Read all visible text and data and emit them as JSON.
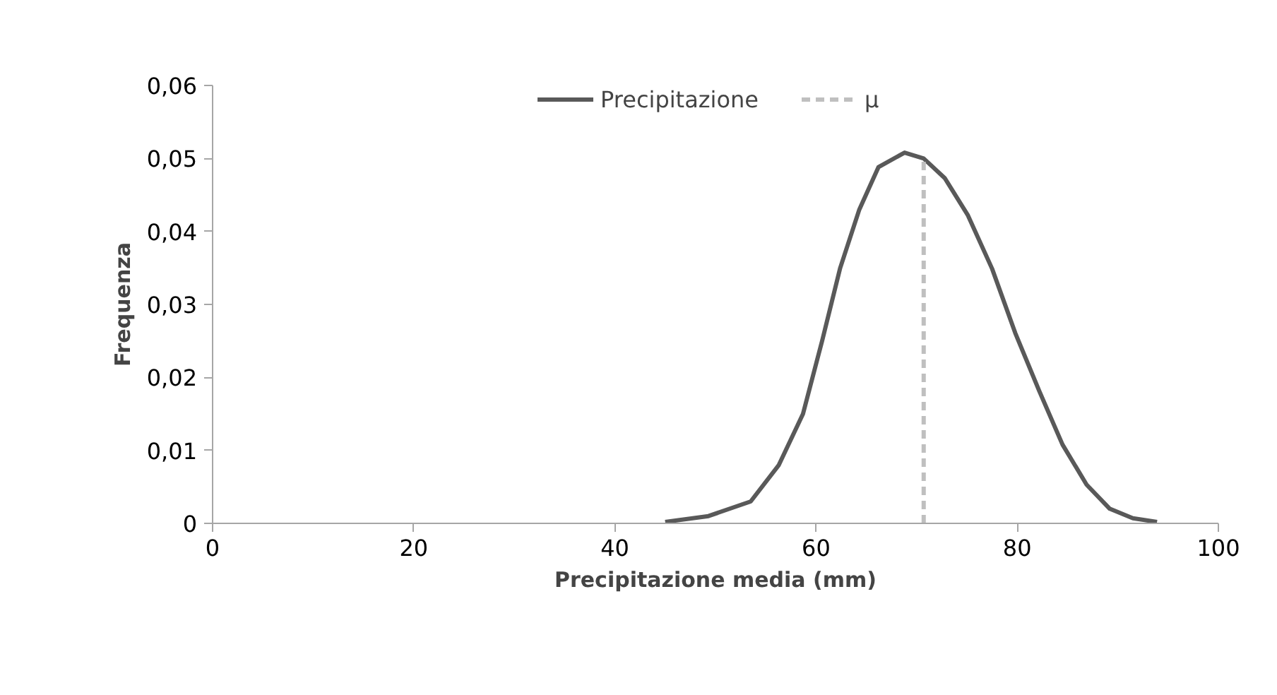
{
  "chart_data": {
    "type": "line",
    "xlabel": "Precipitazione media (mm)",
    "ylabel": "Frequenza",
    "legend": "top",
    "xlim": [
      0,
      100
    ],
    "ylim": [
      0,
      0.06
    ],
    "xticks": [
      0,
      20,
      40,
      60,
      80,
      100
    ],
    "yticks": [
      {
        "value": 0,
        "label": "0"
      },
      {
        "value": 0.01,
        "label": "0,01"
      },
      {
        "value": 0.02,
        "label": "0,02"
      },
      {
        "value": 0.03,
        "label": "0,03"
      },
      {
        "value": 0.04,
        "label": "0,04"
      },
      {
        "value": 0.05,
        "label": "0,05"
      },
      {
        "value": 0.06,
        "label": "0,06"
      }
    ],
    "series": [
      {
        "name": "Precipitazione",
        "color": "#595959",
        "line_style": "solid",
        "x": [
          45,
          49.3,
          53.5,
          56.3,
          58.7,
          60.6,
          62.4,
          64.3,
          66.2,
          68.8,
          70.7,
          72.8,
          75.1,
          77.5,
          79.8,
          82.2,
          84.5,
          86.9,
          89.2,
          91.5,
          93.9
        ],
        "values": [
          0.0002,
          0.001,
          0.003,
          0.008,
          0.015,
          0.025,
          0.035,
          0.043,
          0.0488,
          0.0508,
          0.05,
          0.0473,
          0.0422,
          0.0349,
          0.0261,
          0.0181,
          0.0108,
          0.0053,
          0.002,
          0.0007,
          0.0002
        ]
      },
      {
        "name": "μ",
        "color": "#bfbfbf",
        "line_style": "dashed",
        "x": [
          70.7,
          70.7
        ],
        "values": [
          0,
          0.05
        ]
      }
    ]
  }
}
